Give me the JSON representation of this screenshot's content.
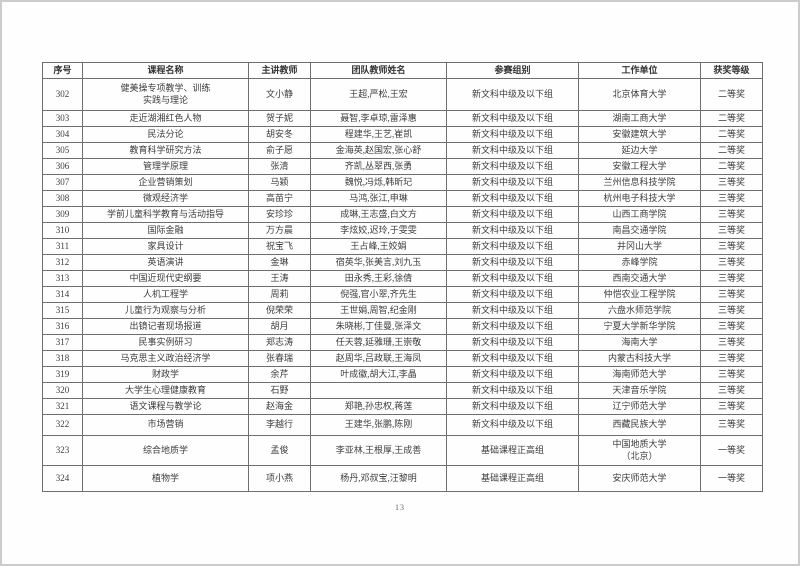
{
  "footer": {
    "page_number": "13"
  },
  "table": {
    "headers": [
      "序号",
      "课程名称",
      "主讲教师",
      "团队教师姓名",
      "参赛组别",
      "工作单位",
      "获奖等级"
    ],
    "rows": [
      {
        "no": "302",
        "course": "健美操专项教学、训练实践与理论",
        "teacher": "文小静",
        "team": "王超,严松,王宏",
        "group": "新文科中级及以下组",
        "unit": "北京体育大学",
        "award": "二等奖"
      },
      {
        "no": "303",
        "course": "走近湖湘红色人物",
        "teacher": "贺子妮",
        "team": "聂智,李卓琼,雷泽惠",
        "group": "新文科中级及以下组",
        "unit": "湖南工商大学",
        "award": "二等奖"
      },
      {
        "no": "304",
        "course": "民法分论",
        "teacher": "胡安冬",
        "team": "程建华,王艺,崔凯",
        "group": "新文科中级及以下组",
        "unit": "安徽建筑大学",
        "award": "二等奖"
      },
      {
        "no": "305",
        "course": "教育科学研究方法",
        "teacher": "俞子愿",
        "team": "金海英,赵国宏,张心舒",
        "group": "新文科中级及以下组",
        "unit": "延边大学",
        "award": "二等奖"
      },
      {
        "no": "306",
        "course": "管理学原理",
        "teacher": "张清",
        "team": "齐凯,丛翠西,张勇",
        "group": "新文科中级及以下组",
        "unit": "安徽工程大学",
        "award": "二等奖"
      },
      {
        "no": "307",
        "course": "企业营销策划",
        "teacher": "马颖",
        "team": "魏悦,冯烁,韩昕玘",
        "group": "新文科中级及以下组",
        "unit": "兰州信息科技学院",
        "award": "三等奖"
      },
      {
        "no": "308",
        "course": "微观经济学",
        "teacher": "高苗宁",
        "team": "马鸿,张江,申琳",
        "group": "新文科中级及以下组",
        "unit": "杭州电子科技大学",
        "award": "三等奖"
      },
      {
        "no": "309",
        "course": "学前儿童科学教育与活动指导",
        "teacher": "安珍珍",
        "team": "成琳,王志盛,白文方",
        "group": "新文科中级及以下组",
        "unit": "山西工商学院",
        "award": "三等奖"
      },
      {
        "no": "310",
        "course": "国际金融",
        "teacher": "万方晨",
        "team": "李炫姣,迟玲,于雯雯",
        "group": "新文科中级及以下组",
        "unit": "南昌交通学院",
        "award": "三等奖"
      },
      {
        "no": "311",
        "course": "家具设计",
        "teacher": "祝宝飞",
        "team": "王占峰,王姣娟",
        "group": "新文科中级及以下组",
        "unit": "井冈山大学",
        "award": "三等奖"
      },
      {
        "no": "312",
        "course": "英语演讲",
        "teacher": "金琳",
        "team": "宿英华,张美言,刘九玉",
        "group": "新文科中级及以下组",
        "unit": "赤峰学院",
        "award": "三等奖"
      },
      {
        "no": "313",
        "course": "中国近现代史纲要",
        "teacher": "王涛",
        "team": "田永秀,王彩,徐倩",
        "group": "新文科中级及以下组",
        "unit": "西南交通大学",
        "award": "三等奖"
      },
      {
        "no": "314",
        "course": "人机工程学",
        "teacher": "周莉",
        "team": "倪强,官小翠,齐先生",
        "group": "新文科中级及以下组",
        "unit": "仲恺农业工程学院",
        "award": "三等奖"
      },
      {
        "no": "315",
        "course": "儿童行为观察与分析",
        "teacher": "倪荣荣",
        "team": "王世娟,周智,纪金刚",
        "group": "新文科中级及以下组",
        "unit": "六盘水师范学院",
        "award": "三等奖"
      },
      {
        "no": "316",
        "course": "出镜记者现场报道",
        "teacher": "胡月",
        "team": "朱晓彬,丁佳曼,张泽文",
        "group": "新文科中级及以下组",
        "unit": "宁夏大学新华学院",
        "award": "三等奖"
      },
      {
        "no": "317",
        "course": "民事实例研习",
        "teacher": "郑志涛",
        "team": "任天蓉,延雅珊,王崇敬",
        "group": "新文科中级及以下组",
        "unit": "海南大学",
        "award": "三等奖"
      },
      {
        "no": "318",
        "course": "马克思主义政治经济学",
        "teacher": "张春瑞",
        "team": "赵周华,吕政联,王海凤",
        "group": "新文科中级及以下组",
        "unit": "内蒙古科技大学",
        "award": "三等奖"
      },
      {
        "no": "319",
        "course": "财政学",
        "teacher": "余芹",
        "team": "叶成徽,胡大江,李晶",
        "group": "新文科中级及以下组",
        "unit": "海南师范大学",
        "award": "三等奖"
      },
      {
        "no": "320",
        "course": "大学生心理健康教育",
        "teacher": "石野",
        "team": "",
        "group": "新文科中级及以下组",
        "unit": "天津音乐学院",
        "award": "三等奖"
      },
      {
        "no": "321",
        "course": "语文课程与教学论",
        "teacher": "赵海金",
        "team": "郑艳,孙忠权,蒋莲",
        "group": "新文科中级及以下组",
        "unit": "辽宁师范大学",
        "award": "三等奖"
      },
      {
        "no": "322",
        "course": "市场营销",
        "teacher": "李越行",
        "team": "王建华,张鹏,陈刚",
        "group": "新文科中级及以下组",
        "unit": "西藏民族大学",
        "award": "三等奖"
      },
      {
        "no": "323",
        "course": "综合地质学",
        "teacher": "孟俊",
        "team": "李亚林,王根厚,王成善",
        "group": "基础课程正高组",
        "unit": "中国地质大学（北京）",
        "award": "一等奖"
      },
      {
        "no": "324",
        "course": "植物学",
        "teacher": "项小燕",
        "team": "杨丹,邓叔宝,汪黎明",
        "group": "基础课程正高组",
        "unit": "安庆师范大学",
        "award": "一等奖"
      }
    ]
  }
}
